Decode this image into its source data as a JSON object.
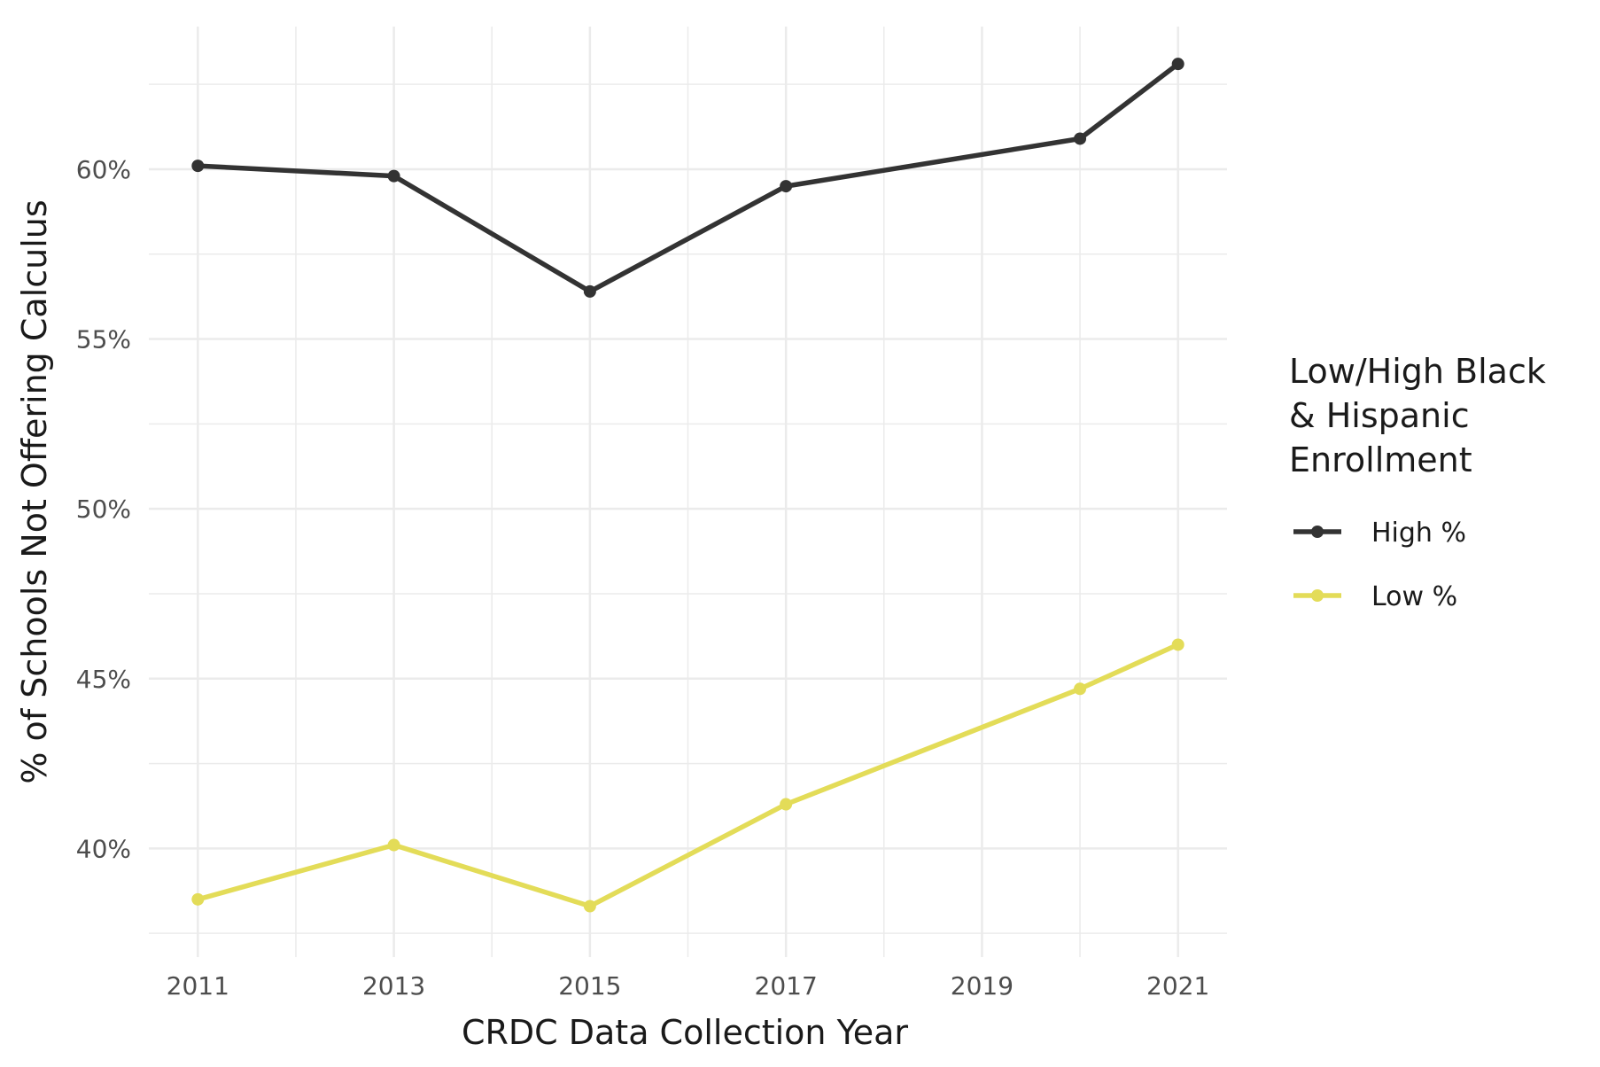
{
  "chart_data": {
    "type": "line",
    "title": "",
    "xlabel": "CRDC Data Collection Year",
    "ylabel": "% of Schools Not Offering Calculus",
    "xlim": [
      2010.5,
      2021.5
    ],
    "ylim": [
      36.8,
      64.2
    ],
    "x_ticks": [
      2011,
      2013,
      2015,
      2017,
      2019,
      2021
    ],
    "x_tick_labels": [
      "2011",
      "2013",
      "2015",
      "2017",
      "2019",
      "2021"
    ],
    "y_ticks": [
      40,
      45,
      50,
      55,
      60
    ],
    "y_tick_labels": [
      "40%",
      "45%",
      "50%",
      "55%",
      "60%"
    ],
    "grid": true,
    "legend_title": [
      "Low/High Black",
      "& Hispanic",
      "Enrollment"
    ],
    "legend_position": "right",
    "series": [
      {
        "name": "High %",
        "color": "#333333",
        "x": [
          2011,
          2013,
          2015,
          2017,
          2020,
          2021
        ],
        "values": [
          60.1,
          59.8,
          56.4,
          59.5,
          60.9,
          63.1
        ]
      },
      {
        "name": "Low %",
        "color": "#e3dc58",
        "x": [
          2011,
          2013,
          2015,
          2017,
          2020,
          2021
        ],
        "values": [
          38.5,
          40.1,
          38.3,
          41.3,
          44.7,
          46.0
        ]
      }
    ]
  }
}
